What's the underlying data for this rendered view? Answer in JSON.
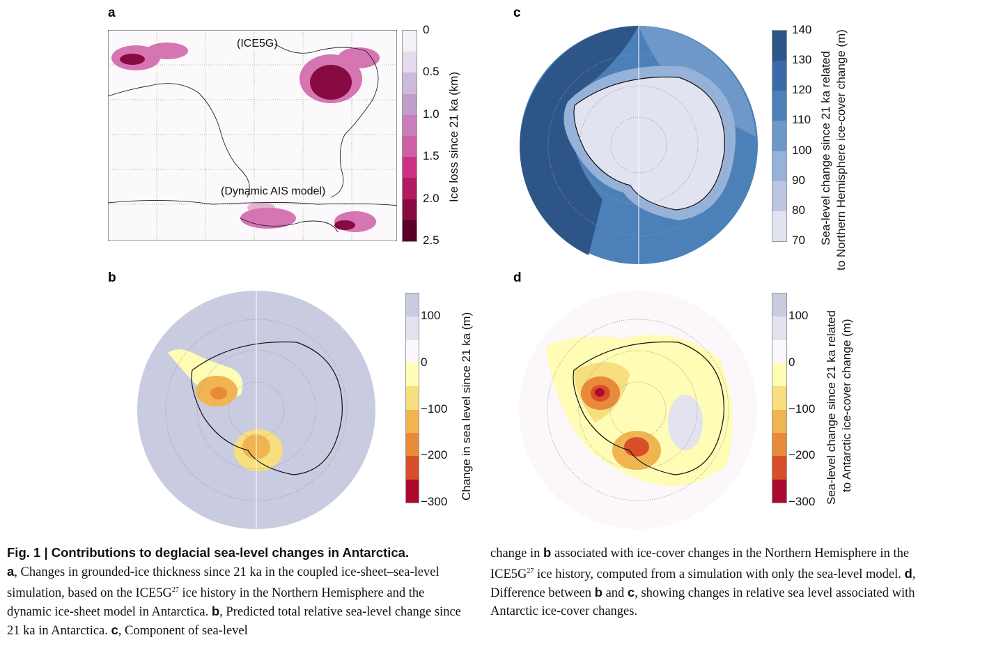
{
  "panels": {
    "a": {
      "label": "a",
      "top_text": "(ICE5G)",
      "bottom_text": "(Dynamic AIS model)",
      "colorbar": {
        "title": "Ice loss since 21 ka (km)",
        "ticks": [
          "0",
          "0.5",
          "1.0",
          "1.5",
          "2.0",
          "2.5"
        ],
        "colors": [
          "#f4f1f7",
          "#e4dcec",
          "#cdbbdb",
          "#c19dcc",
          "#c97fbb",
          "#cf5fa6",
          "#d02f86",
          "#b31a5f",
          "#880a43",
          "#5a0028"
        ]
      }
    },
    "b": {
      "label": "b",
      "colorbar": {
        "title": "Change in sea level since 21 ka (m)",
        "ticks": [
          "100",
          "0",
          "−100",
          "−200",
          "−300"
        ],
        "colors": [
          "#c9cbe0",
          "#e3e3ef",
          "#fbf7fb",
          "#fefcb5",
          "#f7de7e",
          "#f0b550",
          "#e88a3a",
          "#d94f2a",
          "#ab0a2e"
        ]
      }
    },
    "c": {
      "label": "c",
      "colorbar": {
        "title_line1": "Sea-level change since 21 ka related",
        "title_line2": "to Northern Hemisphere ice-cover change (m)",
        "ticks": [
          "140",
          "130",
          "120",
          "110",
          "100",
          "90",
          "80",
          "70"
        ],
        "colors": [
          "#2e5587",
          "#3a6aa8",
          "#4c80b8",
          "#6d98c8",
          "#97b2d8",
          "#bcc6e2",
          "#e2e3f0"
        ]
      }
    },
    "d": {
      "label": "d",
      "colorbar": {
        "title_line1": "Sea-level change since 21 ka related",
        "title_line2": "to Antarctic ice-cover change (m)",
        "ticks": [
          "100",
          "0",
          "−100",
          "−200",
          "−300"
        ],
        "colors": [
          "#c9cbe0",
          "#e3e3ef",
          "#fbf7fb",
          "#fefcb5",
          "#f7de7e",
          "#f0b550",
          "#e88a3a",
          "#d94f2a",
          "#ab0a2e"
        ]
      }
    }
  },
  "caption": {
    "title": "Fig. 1 | Contributions to deglacial sea-level changes in Antarctica.",
    "a_label": "a",
    "a_text1": ", Changes in grounded-ice thickness since 21 ka in the coupled ice-sheet–sea-level simulation, based on the ICE5G",
    "ref1": "27",
    "a_text2": " ice history in the Northern Hemisphere and the dynamic ice-sheet model in Antarctica. ",
    "b_label": "b",
    "b_text": ", Predicted total relative sea-level change since 21 ka in Antarctica. ",
    "c_label": "c",
    "c_text1": ", Component of sea-level change in ",
    "c_ref_b": "b",
    "c_text2": " associated with ice-cover changes in the Northern Hemisphere in the ICE5G",
    "ref2": "27",
    "c_text3": " ice history, computed from a simulation with only the sea-level model. ",
    "d_label": "d",
    "d_text1": ", Difference between ",
    "d_ref_b": "b",
    "d_and": " and ",
    "d_ref_c": "c",
    "d_text2": ", showing changes in relative sea level associated with Antarctic ice-cover changes."
  }
}
